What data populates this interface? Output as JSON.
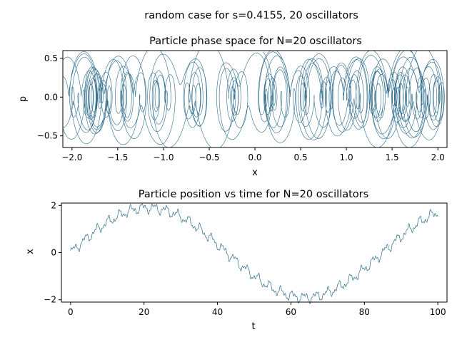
{
  "figure": {
    "suptitle": "random case for s=0.4155, 20 oscillators"
  },
  "chart_data": [
    {
      "type": "line",
      "title": "Particle phase space for N=20 oscillators",
      "xlabel": "x",
      "ylabel": "p",
      "xlim": [
        -2.1,
        2.1
      ],
      "ylim": [
        -0.65,
        0.6
      ],
      "xticks": [
        -2.0,
        -1.5,
        -1.0,
        -0.5,
        0.0,
        0.5,
        1.0,
        1.5,
        2.0
      ],
      "xtick_labels": [
        "−2.0",
        "−1.5",
        "−1.0",
        "−0.5",
        "0.0",
        "0.5",
        "1.0",
        "1.5",
        "2.0"
      ],
      "yticks": [
        0.5,
        0.0,
        -0.5
      ],
      "ytick_labels": [
        "0.5",
        "0.0",
        "−0.5"
      ],
      "line_color": "#2a6a8a",
      "grid": false,
      "series": [
        {
          "x_path": "x(t) = 1.9 sin(2πt/85) + 0.16 sin(2.0t) + 0.08 sin(4.3t+1.1) + 0.05 sin(9.7t+0.4)",
          "curve": "p(t) = dx/dt",
          "t_range": [
            0,
            100
          ]
        }
      ]
    },
    {
      "type": "line",
      "title": "Particle position vs time for N=20 oscillators",
      "xlabel": "t",
      "ylabel": "x",
      "xlim": [
        -2.5,
        102.5
      ],
      "ylim": [
        -2.1,
        2.1
      ],
      "xticks": [
        0,
        20,
        40,
        60,
        80,
        100
      ],
      "xtick_labels": [
        "0",
        "20",
        "40",
        "60",
        "80",
        "100"
      ],
      "yticks": [
        2,
        0,
        -2
      ],
      "ytick_labels": [
        "2",
        "0",
        "−2"
      ],
      "line_color": "#2a6a8a",
      "grid": false,
      "series": [
        {
          "curve": "x(t) = 1.9 sin(2πt/85) + 0.16 sin(2.0t) + 0.08 sin(4.3t+1.1) + 0.05 sin(9.7t+0.4)",
          "t_range": [
            0,
            100
          ]
        }
      ]
    }
  ]
}
